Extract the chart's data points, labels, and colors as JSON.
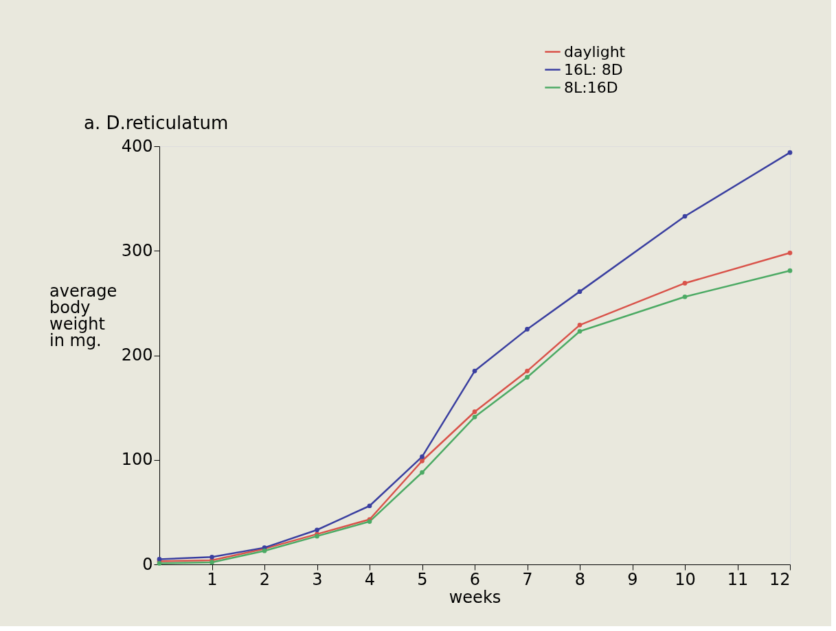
{
  "chart_data": {
    "type": "line",
    "title": "a.  D.reticulatum",
    "xlabel": "weeks",
    "ylabel": "average body weight in mg.",
    "x": [
      0,
      1,
      2,
      3,
      4,
      5,
      6,
      7,
      8,
      10,
      12
    ],
    "series": [
      {
        "name": "daylight",
        "color": "#d9534a",
        "values": [
          3,
          4,
          15,
          29,
          43,
          99,
          146,
          185,
          229,
          269,
          298
        ]
      },
      {
        "name": "16L: 8D",
        "color": "#3a3fa0",
        "values": [
          5,
          7,
          16,
          33,
          56,
          103,
          185,
          225,
          261,
          333,
          394
        ]
      },
      {
        "name": "8L:16D",
        "color": "#4caa64",
        "values": [
          1,
          2,
          13,
          27,
          41,
          88,
          141,
          179,
          223,
          256,
          281
        ]
      }
    ],
    "xlim": [
      0,
      12
    ],
    "xticks": [
      1,
      2,
      3,
      4,
      5,
      6,
      7,
      8,
      9,
      10,
      11,
      12
    ],
    "ylim": [
      0,
      400
    ],
    "yticks": [
      0,
      100,
      200,
      300,
      400
    ],
    "grid": false,
    "legend": "top right",
    "marker": "circle",
    "line_style": "solid"
  }
}
